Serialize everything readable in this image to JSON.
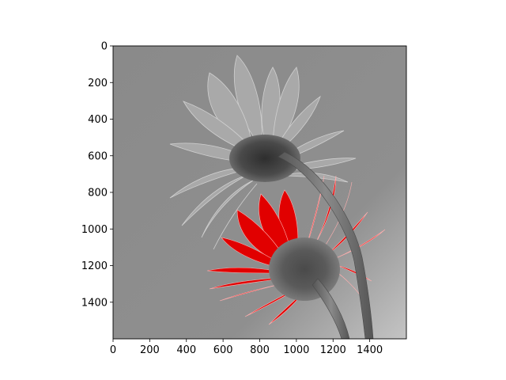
{
  "image": {
    "description_icon": "flower-photo-icon",
    "colors": {
      "background_gray": "#8c8c8c",
      "petal_gray": "#a8a8a8",
      "petal_light": "#c9c9c9",
      "center_dark": "#3a3a3a",
      "stem_gray": "#6e6e6e",
      "red_petal": "#e00000",
      "red_dark": "#b00000",
      "axis_color": "#000000"
    }
  },
  "axes": {
    "x": {
      "range": [
        0,
        1600
      ],
      "ticks": [
        0,
        200,
        400,
        600,
        800,
        1000,
        1200,
        1400
      ],
      "tick_labels": [
        "0",
        "200",
        "400",
        "600",
        "800",
        "1000",
        "1200",
        "1400"
      ]
    },
    "y": {
      "range": [
        0,
        1600
      ],
      "inverted": true,
      "ticks": [
        0,
        200,
        400,
        600,
        800,
        1000,
        1200,
        1400
      ],
      "tick_labels": [
        "0",
        "200",
        "400",
        "600",
        "800",
        "1000",
        "1200",
        "1400"
      ]
    }
  }
}
